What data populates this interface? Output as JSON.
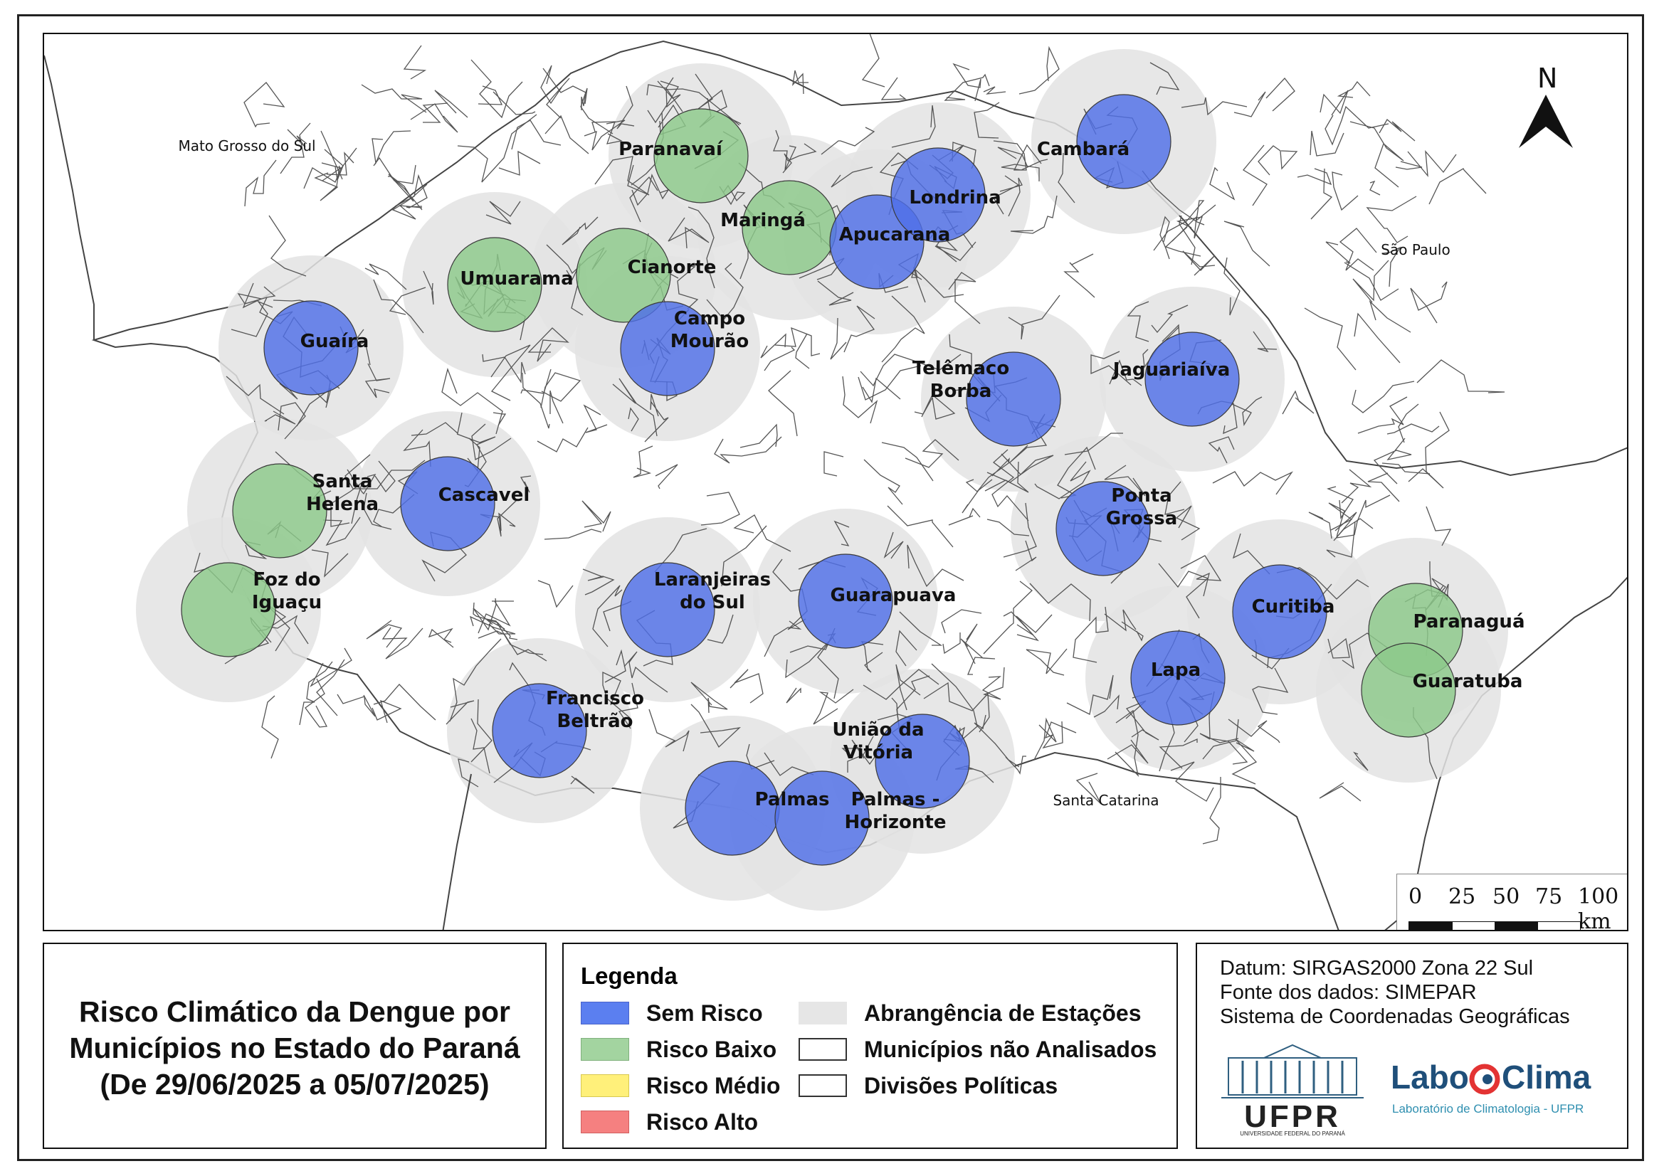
{
  "map": {
    "north_label": "N",
    "regions": [
      {
        "name": "Mato Grosso do Sul"
      },
      {
        "name": "São Paulo"
      },
      {
        "name": "Santa Catarina"
      }
    ],
    "stations": [
      {
        "name": "Paranavaí",
        "lines": [
          "Paranavaí"
        ],
        "risk": "Risco Baixo"
      },
      {
        "name": "Maringá",
        "lines": [
          "Maringá"
        ],
        "risk": "Risco Baixo"
      },
      {
        "name": "Apucarana",
        "lines": [
          "Apucarana"
        ],
        "risk": "Sem Risco"
      },
      {
        "name": "Londrina",
        "lines": [
          "Londrina"
        ],
        "risk": "Sem Risco"
      },
      {
        "name": "Cambará",
        "lines": [
          "Cambará"
        ],
        "risk": "Sem Risco"
      },
      {
        "name": "Umuarama",
        "lines": [
          "Umuarama"
        ],
        "risk": "Risco Baixo"
      },
      {
        "name": "Cianorte",
        "lines": [
          "Cianorte"
        ],
        "risk": "Risco Baixo"
      },
      {
        "name": "Guaíra",
        "lines": [
          "Guaíra"
        ],
        "risk": "Sem Risco"
      },
      {
        "name": "Campo Mourão",
        "lines": [
          "Campo",
          "Mourão"
        ],
        "risk": "Sem Risco"
      },
      {
        "name": "Telêmaco Borba",
        "lines": [
          "Telêmaco",
          "Borba"
        ],
        "risk": "Sem Risco"
      },
      {
        "name": "Jaguariaíva",
        "lines": [
          "Jaguariaíva"
        ],
        "risk": "Sem Risco"
      },
      {
        "name": "Santa Helena",
        "lines": [
          "Santa",
          "Helena"
        ],
        "risk": "Risco Baixo"
      },
      {
        "name": "Cascavel",
        "lines": [
          "Cascavel"
        ],
        "risk": "Sem Risco"
      },
      {
        "name": "Ponta Grossa",
        "lines": [
          "Ponta",
          "Grossa"
        ],
        "risk": "Sem Risco"
      },
      {
        "name": "Foz do Iguaçu",
        "lines": [
          "Foz do",
          "Iguaçu"
        ],
        "risk": "Risco Baixo"
      },
      {
        "name": "Laranjeiras do Sul",
        "lines": [
          "Laranjeiras",
          "do Sul"
        ],
        "risk": "Sem Risco"
      },
      {
        "name": "Guarapuava",
        "lines": [
          "Guarapuava"
        ],
        "risk": "Sem Risco"
      },
      {
        "name": "Curitiba",
        "lines": [
          "Curitiba"
        ],
        "risk": "Sem Risco"
      },
      {
        "name": "Paranaguá",
        "lines": [
          "Paranaguá"
        ],
        "risk": "Risco Baixo"
      },
      {
        "name": "Lapa",
        "lines": [
          "Lapa"
        ],
        "risk": "Sem Risco"
      },
      {
        "name": "Guaratuba",
        "lines": [
          "Guaratuba"
        ],
        "risk": "Risco Baixo"
      },
      {
        "name": "Francisco Beltrão",
        "lines": [
          "Francisco",
          "Beltrão"
        ],
        "risk": "Sem Risco"
      },
      {
        "name": "União da Vitória",
        "lines": [
          "União da",
          "Vitória"
        ],
        "risk": "Sem Risco"
      },
      {
        "name": "Palmas",
        "lines": [
          "Palmas"
        ],
        "risk": "Sem Risco"
      },
      {
        "name": "Palmas - Horizonte",
        "lines": [
          "Palmas -",
          "Horizonte"
        ],
        "risk": "Sem Risco"
      }
    ],
    "scale_bar": {
      "ticks": [
        "0",
        "25",
        "50",
        "75",
        "100 km"
      ]
    }
  },
  "title": {
    "line1": "Risco Climático da Dengue por",
    "line2": "Municípios no Estado do Paraná",
    "line3": "(De 29/06/2025 a 05/07/2025)"
  },
  "legend": {
    "title": "Legenda",
    "items": [
      {
        "label": "Sem Risco",
        "color": "#5b7ff0"
      },
      {
        "label": "Risco Baixo",
        "color": "#a3d4a0"
      },
      {
        "label": "Risco Médio",
        "color": "#fff07a"
      },
      {
        "label": "Risco Alto",
        "color": "#f58080"
      },
      {
        "label": "Abrangência de Estações",
        "color": "#e6e6e6"
      },
      {
        "label": "Municípios não Analisados",
        "color": "#ffffff"
      },
      {
        "label": "Divisões Políticas",
        "color": "#ffffff"
      }
    ]
  },
  "info": {
    "datum": "Datum: SIRGAS2000 Zona 22 Sul",
    "source": "Fonte dos dados: SIMEPAR",
    "crs": "Sistema de Coordenadas Geográficas",
    "ufpr_logo": "UFPR",
    "ufpr_sub": "UNIVERSIDADE FEDERAL DO PARANÁ",
    "labo_logo_left": "Labo",
    "labo_logo_right": "Clima",
    "labo_sub": "Laboratório de Climatologia - UFPR"
  },
  "colors": {
    "sem_risco": "#4f6fe8",
    "risco_baixo": "#8cc98a",
    "coverage": "#e3e3e3"
  }
}
